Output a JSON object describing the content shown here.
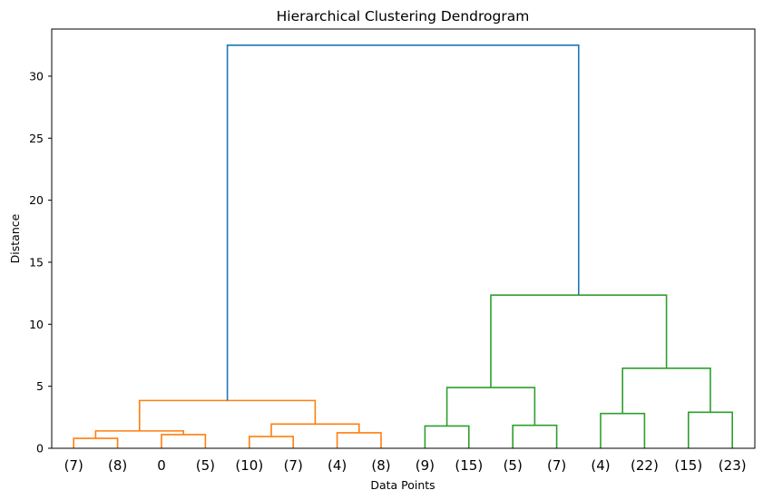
{
  "chart_data": {
    "type": "dendrogram",
    "title": "Hierarchical Clustering Dendrogram",
    "xlabel": "Data Points",
    "ylabel": "Distance",
    "ylim": [
      0,
      33.8
    ],
    "yticks": [
      0,
      5,
      10,
      15,
      20,
      25,
      30
    ],
    "leaf_labels": [
      "(7)",
      "(8)",
      "0",
      "(5)",
      "(10)",
      "(7)",
      "(4)",
      "(8)",
      "(9)",
      "(15)",
      "(5)",
      "(7)",
      "(4)",
      "(22)",
      "(15)",
      "(23)"
    ],
    "colors": {
      "above_threshold": "#1f77b4",
      "cluster_1": "#ff7f0e",
      "cluster_2": "#2ca02c"
    },
    "links": [
      {
        "x": [
          0,
          1
        ],
        "dl": 0,
        "dr": 0,
        "h": 0.8,
        "color": "cluster_1"
      },
      {
        "x": [
          2,
          3
        ],
        "dl": 0,
        "dr": 0,
        "h": 1.1,
        "color": "cluster_1"
      },
      {
        "x": [
          0.5,
          2.5
        ],
        "dl": 0.8,
        "dr": 1.1,
        "h": 1.4,
        "color": "cluster_1"
      },
      {
        "x": [
          4,
          5
        ],
        "dl": 0,
        "dr": 0,
        "h": 0.95,
        "color": "cluster_1"
      },
      {
        "x": [
          6,
          7
        ],
        "dl": 0,
        "dr": 0,
        "h": 1.25,
        "color": "cluster_1"
      },
      {
        "x": [
          4.5,
          6.5
        ],
        "dl": 0.95,
        "dr": 1.25,
        "h": 1.95,
        "color": "cluster_1"
      },
      {
        "x": [
          1.5,
          5.5
        ],
        "dl": 1.4,
        "dr": 1.95,
        "h": 3.85,
        "color": "cluster_1"
      },
      {
        "x": [
          8,
          9
        ],
        "dl": 0,
        "dr": 0,
        "h": 1.8,
        "color": "cluster_2"
      },
      {
        "x": [
          10,
          11
        ],
        "dl": 0,
        "dr": 0,
        "h": 1.85,
        "color": "cluster_2"
      },
      {
        "x": [
          8.5,
          10.5
        ],
        "dl": 1.8,
        "dr": 1.85,
        "h": 4.9,
        "color": "cluster_2"
      },
      {
        "x": [
          12,
          13
        ],
        "dl": 0,
        "dr": 0,
        "h": 2.8,
        "color": "cluster_2"
      },
      {
        "x": [
          14,
          15
        ],
        "dl": 0,
        "dr": 0,
        "h": 2.9,
        "color": "cluster_2"
      },
      {
        "x": [
          12.5,
          14.5
        ],
        "dl": 2.8,
        "dr": 2.9,
        "h": 6.45,
        "color": "cluster_2"
      },
      {
        "x": [
          9.5,
          13.5
        ],
        "dl": 4.9,
        "dr": 6.45,
        "h": 12.35,
        "color": "cluster_2"
      },
      {
        "x": [
          3.5,
          11.5
        ],
        "dl": 3.85,
        "dr": 12.35,
        "h": 32.5,
        "color": "above_threshold"
      }
    ]
  }
}
